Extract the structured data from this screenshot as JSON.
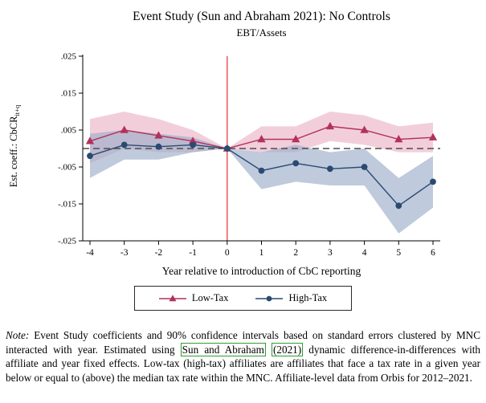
{
  "chart_data": {
    "type": "line",
    "title": "Event Study (Sun and Abraham 2021): No Controls",
    "subtitle": "EBT/Assets",
    "xlabel": "Year relative to introduction of CbC reporting",
    "ylabel": "Est. coeff.: CbCR",
    "ylabel_subscript": "it+q",
    "x": [
      -4,
      -3,
      -2,
      -1,
      0,
      1,
      2,
      3,
      4,
      5,
      6
    ],
    "ylim": [
      -0.025,
      0.025
    ],
    "yticks": [
      0.025,
      0.015,
      0.005,
      -0.005,
      -0.015,
      -0.025
    ],
    "ytick_labels": [
      ".025",
      ".015",
      ".005",
      "-.005",
      "-.015",
      "-.025"
    ],
    "grid": false,
    "legend_position": "bottom",
    "reference_vline_x": 0,
    "reference_hline_y": 0,
    "vline_color": "#e03030",
    "hline_color": "#4d4d4d",
    "series": [
      {
        "name": "Low-Tax",
        "marker": "triangle",
        "color": "#b2325c",
        "band_color": "#edbecf",
        "band_opacity": 0.75,
        "values": [
          0.002,
          0.005,
          0.0035,
          0.002,
          0,
          0.0025,
          0.0025,
          0.006,
          0.005,
          0.0025,
          0.003
        ],
        "ci_upper": [
          0.008,
          0.01,
          0.008,
          0.005,
          0,
          0.006,
          0.006,
          0.01,
          0.009,
          0.006,
          0.007
        ],
        "ci_lower": [
          -0.004,
          0.0,
          -0.001,
          -0.001,
          0,
          -0.001,
          -0.001,
          0.002,
          0.001,
          -0.001,
          -0.001
        ]
      },
      {
        "name": "High-Tax",
        "marker": "circle",
        "color": "#2a4a72",
        "band_color": "#9cadc9",
        "band_opacity": 0.65,
        "values": [
          -0.002,
          0.001,
          0.0005,
          0.001,
          0,
          -0.006,
          -0.004,
          -0.0055,
          -0.005,
          -0.0155,
          -0.009
        ],
        "ci_upper": [
          0.004,
          0.005,
          0.004,
          0.003,
          0,
          -0.001,
          0.001,
          -0.001,
          0.0,
          -0.008,
          -0.002
        ],
        "ci_lower": [
          -0.008,
          -0.003,
          -0.003,
          -0.001,
          0,
          -0.011,
          -0.009,
          -0.01,
          -0.01,
          -0.023,
          -0.016
        ]
      }
    ]
  },
  "note": {
    "label": "Note:",
    "seg1": " Event Study coefficients and 90% confidence intervals based on standard errors clustered by MNC interacted with year. Estimated using ",
    "link1": "Sun and Abraham",
    "sep": " ",
    "link2": "(2021)",
    "seg2": " dynamic difference-in-differences with affiliate and year fixed effects. Low-tax (high-tax) affiliates are affiliates that face a tax rate in a given year below or equal to (above) the median tax rate within the MNC. Affiliate-level data from Orbis for 2012–2021."
  }
}
